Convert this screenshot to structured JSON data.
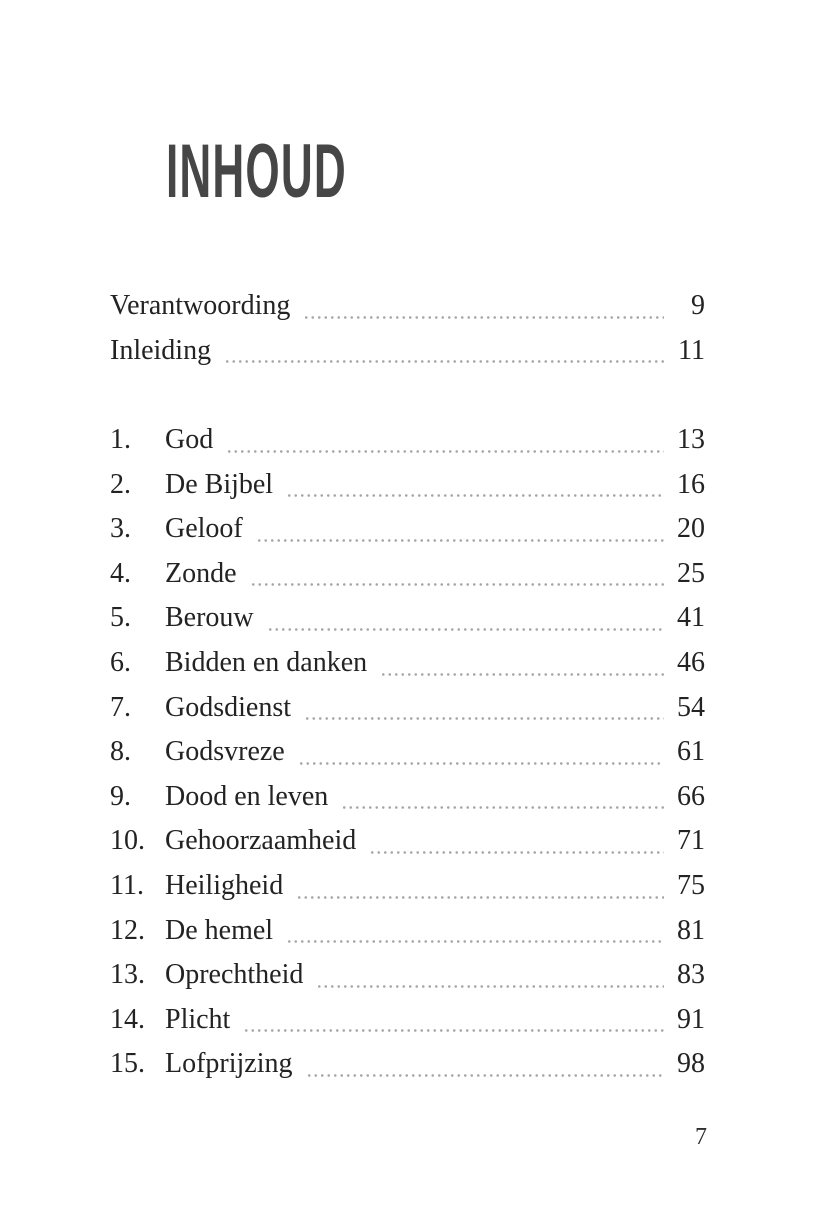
{
  "page": {
    "title": "INHOUD",
    "footer_page_number": "7"
  },
  "colors": {
    "background": "#ffffff",
    "title_text": "#464646",
    "body_text": "#232323",
    "leader_dots": "#a6a6a6"
  },
  "front_matter": [
    {
      "label": "Verantwoording",
      "page": "9"
    },
    {
      "label": "Inleiding",
      "page": "11"
    }
  ],
  "chapters": [
    {
      "num": "1.",
      "label": "God",
      "page": "13"
    },
    {
      "num": "2.",
      "label": "De Bijbel",
      "page": "16"
    },
    {
      "num": "3.",
      "label": "Geloof",
      "page": "20"
    },
    {
      "num": "4.",
      "label": "Zonde",
      "page": "25"
    },
    {
      "num": "5.",
      "label": "Berouw",
      "page": "41"
    },
    {
      "num": "6.",
      "label": "Bidden en danken",
      "page": "46"
    },
    {
      "num": "7.",
      "label": "Godsdienst",
      "page": "54"
    },
    {
      "num": "8.",
      "label": "Godsvreze",
      "page": "61"
    },
    {
      "num": "9.",
      "label": "Dood en leven",
      "page": "66"
    },
    {
      "num": "10.",
      "label": "Gehoorzaamheid",
      "page": "71"
    },
    {
      "num": "11.",
      "label": "Heiligheid",
      "page": "75"
    },
    {
      "num": "12.",
      "label": "De hemel",
      "page": "81"
    },
    {
      "num": "13.",
      "label": "Oprechtheid",
      "page": "83"
    },
    {
      "num": "14.",
      "label": "Plicht",
      "page": "91"
    },
    {
      "num": "15.",
      "label": "Lofprijzing",
      "page": "98"
    }
  ]
}
